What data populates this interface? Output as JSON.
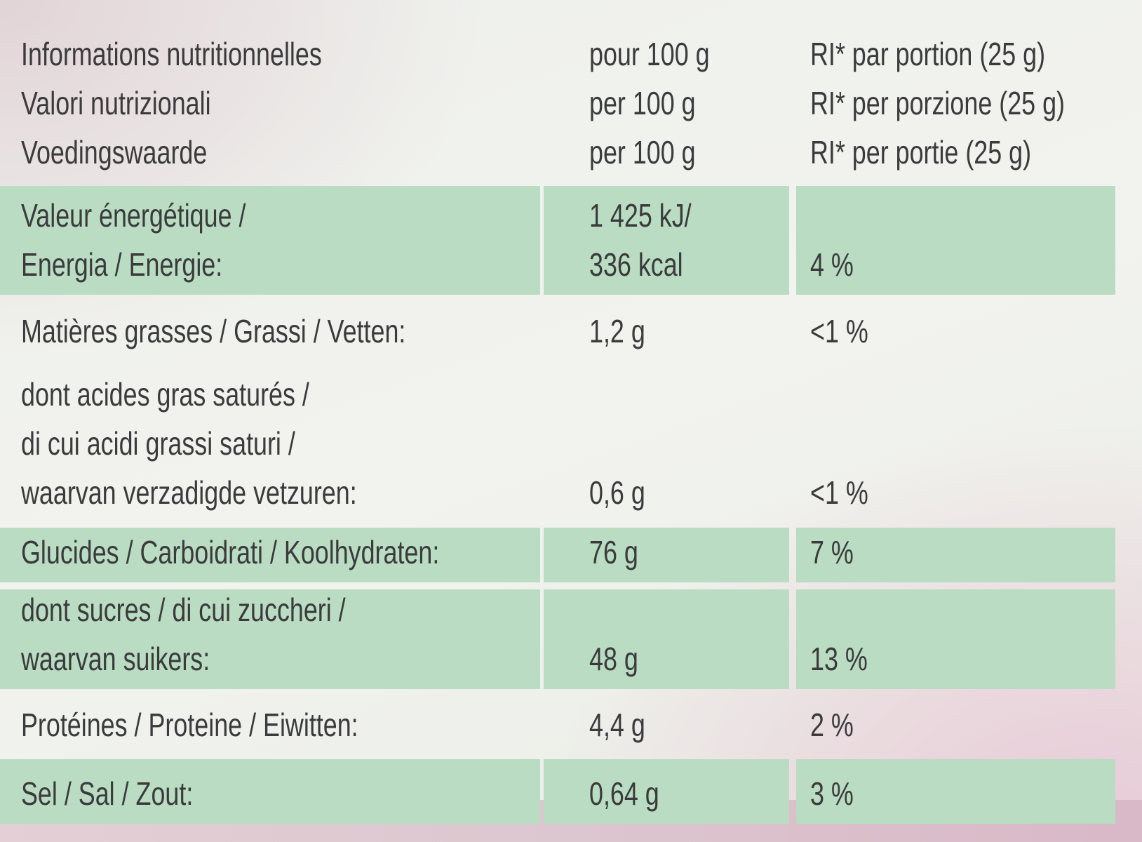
{
  "header": {
    "label": [
      "Informations nutritionnelles",
      "Valori nutrizionali",
      "Voedingswaarde"
    ],
    "per100": [
      "pour 100 g",
      "per 100 g",
      "per 100 g"
    ],
    "ri": [
      "RI* par portion (25 g)",
      "RI* per porzione (25 g)",
      "RI* per portie (25 g)"
    ]
  },
  "rows": [
    {
      "label": [
        "Valeur énergétique /",
        "Energia / Energie:"
      ],
      "per100": [
        "1 425 kJ/",
        "336 kcal"
      ],
      "ri": [
        "4 %"
      ]
    },
    {
      "label": [
        "Matières grasses / Grassi / Vetten:"
      ],
      "per100": [
        "1,2 g"
      ],
      "ri": [
        "<1 %"
      ]
    },
    {
      "label": [
        "dont acides gras saturés /",
        "di cui acidi grassi saturi /",
        "waarvan verzadigde vetzuren:"
      ],
      "per100": [
        "0,6 g"
      ],
      "ri": [
        "<1 %"
      ]
    },
    {
      "label": [
        "Glucides / Carboidrati / Koolhydraten:"
      ],
      "per100": [
        "76 g"
      ],
      "ri": [
        "7 %"
      ]
    },
    {
      "label": [
        "dont sucres / di cui zuccheri /",
        "waarvan suikers:"
      ],
      "per100": [
        "48 g"
      ],
      "ri": [
        "13 %"
      ]
    },
    {
      "label": [
        "Protéines / Proteine / Eiwitten:"
      ],
      "per100": [
        "4,4 g"
      ],
      "ri": [
        "2 %"
      ]
    },
    {
      "label": [
        "Sel / Sal / Zout:"
      ],
      "per100": [
        "0,64 g"
      ],
      "ri": [
        "3 %"
      ]
    }
  ]
}
